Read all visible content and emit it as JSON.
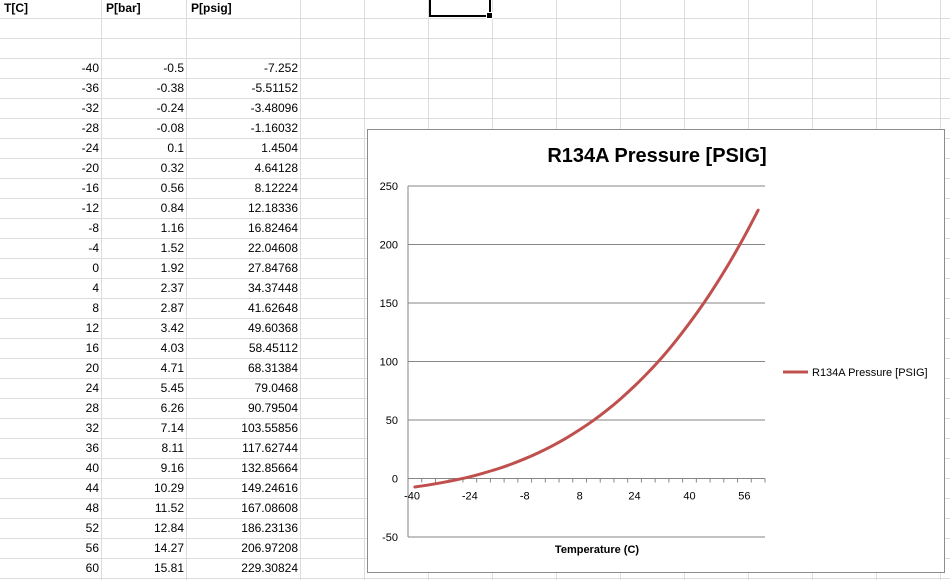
{
  "sheet": {
    "headers": [
      "T[C]",
      "P[bar]",
      "P[psig]"
    ],
    "rows": [
      [
        "-40",
        "-0.5",
        "-7.252"
      ],
      [
        "-36",
        "-0.38",
        "-5.51152"
      ],
      [
        "-32",
        "-0.24",
        "-3.48096"
      ],
      [
        "-28",
        "-0.08",
        "-1.16032"
      ],
      [
        "-24",
        "0.1",
        "1.4504"
      ],
      [
        "-20",
        "0.32",
        "4.64128"
      ],
      [
        "-16",
        "0.56",
        "8.12224"
      ],
      [
        "-12",
        "0.84",
        "12.18336"
      ],
      [
        "-8",
        "1.16",
        "16.82464"
      ],
      [
        "-4",
        "1.52",
        "22.04608"
      ],
      [
        "0",
        "1.92",
        "27.84768"
      ],
      [
        "4",
        "2.37",
        "34.37448"
      ],
      [
        "8",
        "2.87",
        "41.62648"
      ],
      [
        "12",
        "3.42",
        "49.60368"
      ],
      [
        "16",
        "4.03",
        "58.45112"
      ],
      [
        "20",
        "4.71",
        "68.31384"
      ],
      [
        "24",
        "5.45",
        "79.0468"
      ],
      [
        "28",
        "6.26",
        "90.79504"
      ],
      [
        "32",
        "7.14",
        "103.55856"
      ],
      [
        "36",
        "8.11",
        "117.62744"
      ],
      [
        "40",
        "9.16",
        "132.85664"
      ],
      [
        "44",
        "10.29",
        "149.24616"
      ],
      [
        "48",
        "11.52",
        "167.08608"
      ],
      [
        "52",
        "12.84",
        "186.23136"
      ],
      [
        "56",
        "14.27",
        "206.97208"
      ],
      [
        "60",
        "15.81",
        "229.30824"
      ]
    ]
  },
  "chart_data": {
    "type": "line",
    "title": "R134A Pressure [PSIG]",
    "xlabel": "Temperature (C)",
    "ylabel": "",
    "x": [
      -40,
      -36,
      -32,
      -28,
      -24,
      -20,
      -16,
      -12,
      -8,
      -4,
      0,
      4,
      8,
      12,
      16,
      20,
      24,
      28,
      32,
      36,
      40,
      44,
      48,
      52,
      56,
      60
    ],
    "x_tick_labels": [
      "-40",
      "-24",
      "-8",
      "8",
      "24",
      "40",
      "56"
    ],
    "y_ticks": [
      -50,
      0,
      50,
      100,
      150,
      200,
      250
    ],
    "ylim": [
      -50,
      250
    ],
    "grid": "horizontal",
    "legend_position": "right",
    "series": [
      {
        "name": "R134A Pressure [PSIG]",
        "color": "#c0504d",
        "values": [
          -7.252,
          -5.51152,
          -3.48096,
          -1.16032,
          1.4504,
          4.64128,
          8.12224,
          12.18336,
          16.82464,
          22.04608,
          27.84768,
          34.37448,
          41.62648,
          49.60368,
          58.45112,
          68.31384,
          79.0468,
          90.79504,
          103.55856,
          117.62744,
          132.85664,
          149.24616,
          167.08608,
          186.23136,
          206.97208,
          229.30824
        ]
      }
    ]
  }
}
